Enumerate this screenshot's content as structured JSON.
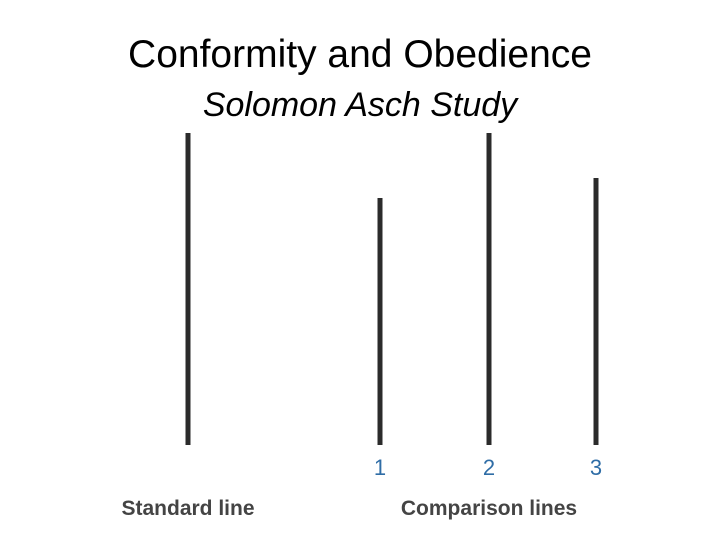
{
  "header": {
    "title": "Conformity and Obedience",
    "subtitle": "Solomon Asch Study"
  },
  "diagram": {
    "comparison_numbers": [
      "1",
      "2",
      "3"
    ],
    "standard_label": "Standard line",
    "comparison_label": "Comparison lines"
  }
}
